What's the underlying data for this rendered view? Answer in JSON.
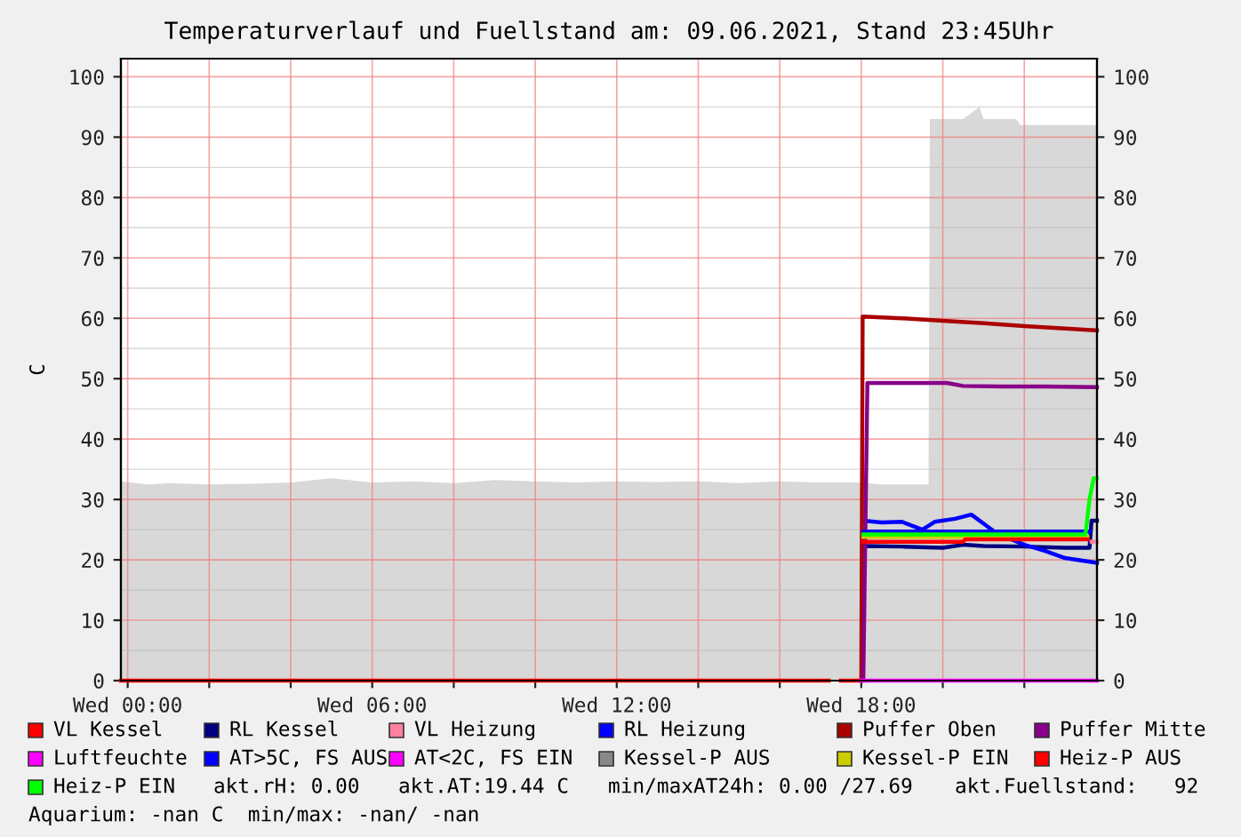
{
  "chart_data": {
    "type": "line",
    "title": "Temperaturverlauf und Fuellstand am: 09.06.2021, Stand 23:45Uhr",
    "ylabel": "C",
    "xlim": [
      "2021-06-08T23:50",
      "2021-06-09T23:47"
    ],
    "xticks": [
      {
        "value": "2021-06-09T00:00",
        "label": "Wed 00:00"
      },
      {
        "value": "2021-06-09T02:00",
        "label": null
      },
      {
        "value": "2021-06-09T04:00",
        "label": null
      },
      {
        "value": "2021-06-09T06:00",
        "label": "Wed 06:00"
      },
      {
        "value": "2021-06-09T08:00",
        "label": null
      },
      {
        "value": "2021-06-09T10:00",
        "label": null
      },
      {
        "value": "2021-06-09T12:00",
        "label": "Wed 12:00"
      },
      {
        "value": "2021-06-09T14:00",
        "label": null
      },
      {
        "value": "2021-06-09T16:00",
        "label": null
      },
      {
        "value": "2021-06-09T18:00",
        "label": "Wed 18:00"
      },
      {
        "value": "2021-06-09T20:00",
        "label": null
      },
      {
        "value": "2021-06-09T22:00",
        "label": null
      }
    ],
    "ylim": [
      0,
      103
    ],
    "yticks": [
      0,
      10,
      20,
      30,
      40,
      50,
      60,
      70,
      80,
      90,
      100
    ],
    "y2lim": [
      0,
      103
    ],
    "y2ticks": [
      0,
      10,
      20,
      30,
      40,
      50,
      60,
      70,
      80,
      90,
      100
    ],
    "grid": true,
    "legend": "bottom",
    "series": [
      {
        "type": "area",
        "color": "#d8d8d8",
        "x": [
          "2021-06-08T23:50",
          "2021-06-09T00:30",
          "2021-06-09T01:00",
          "2021-06-09T02:00",
          "2021-06-09T03:00",
          "2021-06-09T04:00",
          "2021-06-09T05:00",
          "2021-06-09T06:00",
          "2021-06-09T07:00",
          "2021-06-09T08:00",
          "2021-06-09T09:00",
          "2021-06-09T10:00",
          "2021-06-09T11:00",
          "2021-06-09T12:00",
          "2021-06-09T13:00",
          "2021-06-09T14:00",
          "2021-06-09T15:00",
          "2021-06-09T16:00",
          "2021-06-09T17:00",
          "2021-06-09T18:00",
          "2021-06-09T18:30",
          "2021-06-09T19:39",
          "2021-06-09T19:41",
          "2021-06-09T20:30",
          "2021-06-09T20:54",
          "2021-06-09T21:00",
          "2021-06-09T21:48",
          "2021-06-09T21:54",
          "2021-06-09T23:47"
        ],
        "values": [
          33,
          32.5,
          32.7,
          32.5,
          32.6,
          32.8,
          33.5,
          32.8,
          33,
          32.7,
          33.2,
          33,
          32.8,
          33,
          32.9,
          33,
          32.7,
          33,
          32.8,
          32.8,
          32.5,
          32.5,
          93,
          93,
          95,
          93,
          93,
          92,
          92
        ]
      },
      {
        "name": "VL Kessel",
        "color": "#ff0000",
        "x": [
          "2021-06-08T23:50",
          "2021-06-09T17:12",
          "2021-06-09T17:15",
          "2021-06-09T17:30",
          "2021-06-09T17:57"
        ],
        "values": [
          0,
          0,
          null,
          0,
          0
        ]
      },
      {
        "name": "RL Kessel",
        "color": "#000080",
        "x": [
          "2021-06-09T18:03",
          "2021-06-09T18:06",
          "2021-06-09T19:00",
          "2021-06-09T20:00",
          "2021-06-09T20:30",
          "2021-06-09T21:00",
          "2021-06-09T22:00",
          "2021-06-09T23:00",
          "2021-06-09T23:36",
          "2021-06-09T23:39",
          "2021-06-09T23:47"
        ],
        "values": [
          21,
          22.3,
          22.2,
          22,
          22.5,
          22.3,
          22.2,
          22,
          22,
          26.5,
          26.5
        ]
      },
      {
        "name": "VL Heizung",
        "color": "#ff80a0",
        "x": [
          "2021-06-09T23:39",
          "2021-06-09T23:47"
        ],
        "values": [
          23,
          23
        ]
      },
      {
        "name": "RL Heizung",
        "color": "#0000ff",
        "x": [
          "2021-06-09T18:03",
          "2021-06-09T18:30",
          "2021-06-09T19:00",
          "2021-06-09T19:30",
          "2021-06-09T19:48",
          "2021-06-09T20:18",
          "2021-06-09T20:42",
          "2021-06-09T21:00",
          "2021-06-09T21:18",
          "2021-06-09T22:00",
          "2021-06-09T22:30",
          "2021-06-09T23:00",
          "2021-06-09T23:47"
        ],
        "values": [
          26.5,
          26.2,
          26.3,
          25,
          26.3,
          26.8,
          27.5,
          26,
          24.5,
          22.5,
          21.5,
          20.3,
          19.5
        ]
      },
      {
        "name": "Puffer Oben",
        "color": "#aa0000",
        "x": [
          "2021-06-09T18:00",
          "2021-06-09T18:02",
          "2021-06-09T19:00",
          "2021-06-09T20:00",
          "2021-06-09T21:00",
          "2021-06-09T22:00",
          "2021-06-09T23:00",
          "2021-06-09T23:47"
        ],
        "values": [
          0,
          60.3,
          60,
          59.6,
          59.2,
          58.7,
          58.3,
          58
        ]
      },
      {
        "name": "Puffer Mitte",
        "color": "#880088",
        "x": [
          "2021-06-09T18:03",
          "2021-06-09T18:09",
          "2021-06-09T19:30",
          "2021-06-09T20:06",
          "2021-06-09T20:30",
          "2021-06-09T21:30",
          "2021-06-09T22:30",
          "2021-06-09T23:47"
        ],
        "values": [
          0,
          49.3,
          49.3,
          49.3,
          48.8,
          48.7,
          48.7,
          48.6
        ]
      },
      {
        "name": "Luftfeuchte",
        "color": "#ff00ff",
        "x": [
          "2021-06-09T18:00",
          "2021-06-09T23:47"
        ],
        "values": [
          0,
          0
        ]
      },
      {
        "name": "AT>5C, FS AUS",
        "color": "#0000ff",
        "x": [
          "2021-06-09T18:03",
          "2021-06-09T23:36"
        ],
        "values": [
          24.7,
          24.7
        ]
      },
      {
        "name": "AT<2C, FS EIN",
        "color": "#ff00ff"
      },
      {
        "name": "Kessel-P AUS",
        "color": "#888888"
      },
      {
        "name": "Kessel-P EIN",
        "color": "#cccc00",
        "x": [
          "2021-06-09T18:03",
          "2021-06-09T23:33"
        ],
        "values": [
          23.8,
          23.8
        ]
      },
      {
        "name": "Heiz-P AUS",
        "color": "#ff0000",
        "x": [
          "2021-06-09T18:03",
          "2021-06-09T20:30",
          "2021-06-09T20:33",
          "2021-06-09T23:33"
        ],
        "values": [
          23,
          23,
          23.4,
          23.4
        ]
      },
      {
        "name": "Heiz-P EIN",
        "color": "#00ff00",
        "x": [
          "2021-06-09T18:03",
          "2021-06-09T23:30",
          "2021-06-09T23:36",
          "2021-06-09T23:42",
          "2021-06-09T23:47"
        ],
        "values": [
          24.2,
          24.2,
          30,
          33.5,
          33.5
        ]
      }
    ],
    "annotations": [
      "akt.rH: 0.00",
      "akt.AT:19.44 C",
      "min/maxAT24h: 0.00 /27.69",
      "akt.Fuellstand:   92",
      "Aquarium: -nan C  min/max: -nan/ -nan"
    ]
  }
}
